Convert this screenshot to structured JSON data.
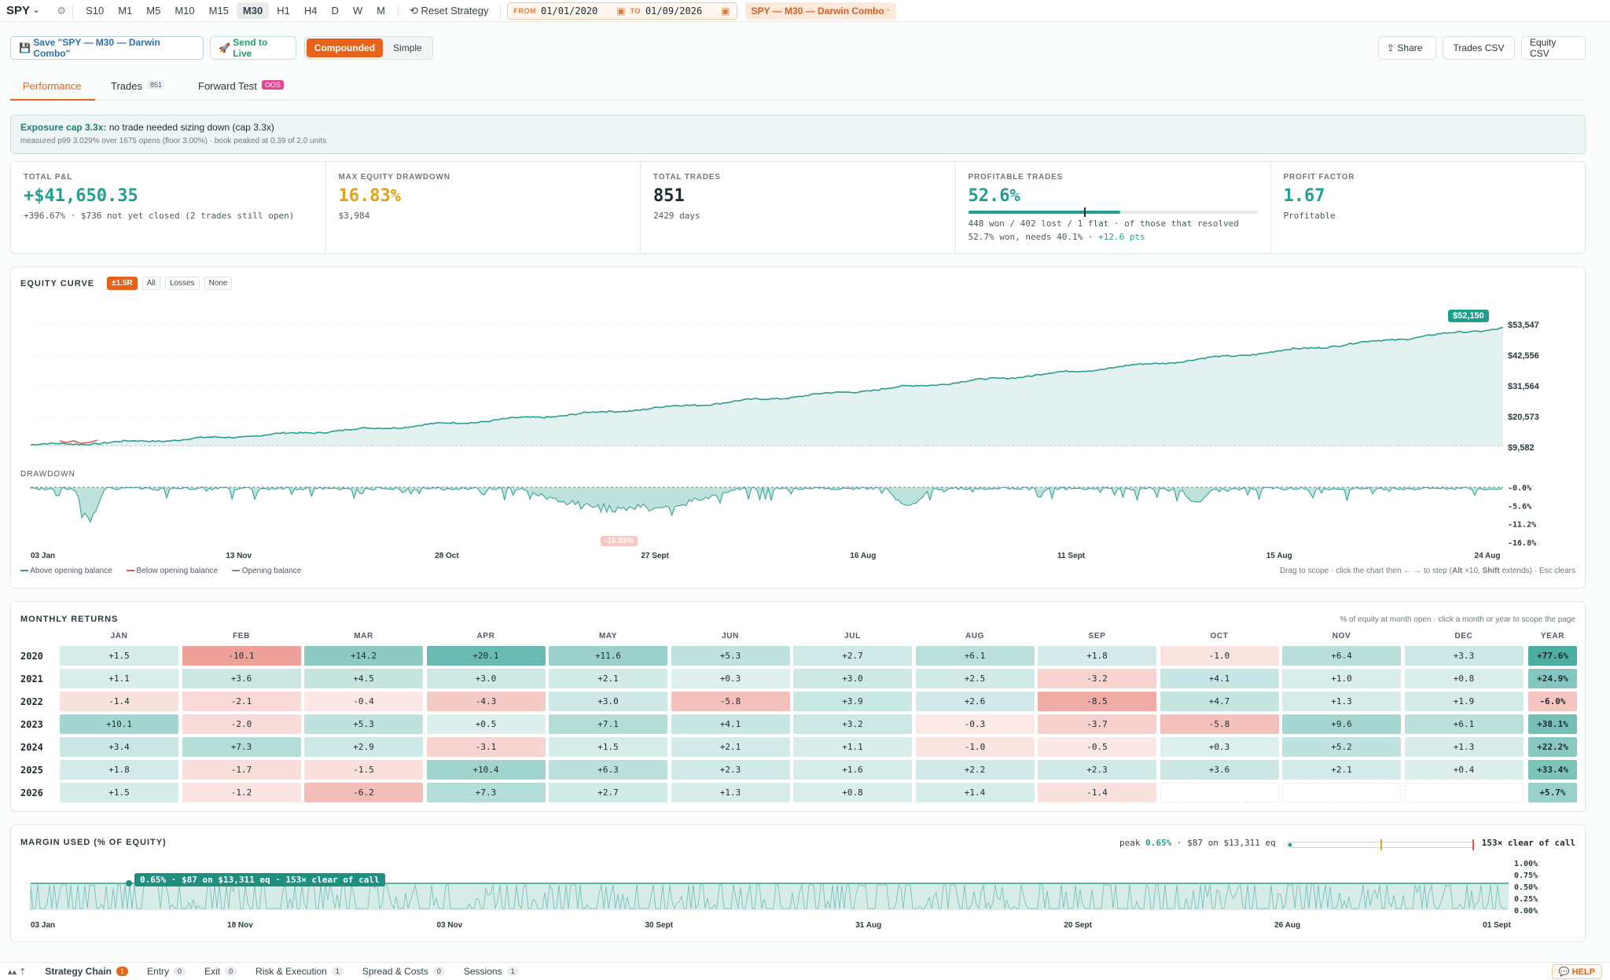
{
  "topbar": {
    "symbol": "SPY",
    "timeframes": [
      "S10",
      "M1",
      "M5",
      "M10",
      "M15",
      "M30",
      "H1",
      "H4",
      "D",
      "W",
      "M"
    ],
    "active_timeframe": "M30",
    "reset_label": "Reset Strategy",
    "from_label": "FROM",
    "from_value": "01/01/2020",
    "to_label": "TO",
    "to_value": "01/09/2026",
    "strategy_tag": "SPY — M30 — Darwin Combo"
  },
  "toolbar": {
    "save_label": "Save \"SPY — M30 — Darwin Combo\"",
    "send_label": "Send to Live",
    "compounded_label": "Compounded",
    "simple_label": "Simple",
    "share_label": "Share",
    "trades_csv_label": "Trades CSV",
    "equity_csv_label": "Equity CSV"
  },
  "tabs": [
    {
      "label": "Performance",
      "badge": ""
    },
    {
      "label": "Trades",
      "badge": "851"
    },
    {
      "label": "Forward Test",
      "badge": "OOS"
    }
  ],
  "exposure": {
    "title": "Exposure cap 3.3x:",
    "text": "no trade needed sizing down (cap 3.3x)",
    "detail": "measured p99 3.029% over 1675 opens (floor 3.00%) · book peaked at 0.39 of 2.0 units"
  },
  "kpis": {
    "total_pnl": {
      "label": "TOTAL P&L",
      "value": "+$41,650.35",
      "sub": "+396.67% · $736 not yet closed (2 trades still open)"
    },
    "max_dd": {
      "label": "MAX EQUITY DRAWDOWN",
      "value": "16.83%",
      "sub": "$3,984"
    },
    "total_trades": {
      "label": "TOTAL TRADES",
      "value": "851",
      "sub": "2429 days"
    },
    "profitable": {
      "label": "PROFITABLE TRADES",
      "value": "52.6%",
      "progress": 0.526,
      "marker": 0.401,
      "sub1": "448 won / 402 lost / 1 flat · of those that resolved",
      "sub2a": "52.7% won, needs 40.1% ·",
      "sub2b": "+12.6 pts"
    },
    "profit_factor": {
      "label": "PROFIT FACTOR",
      "value": "1.67",
      "sub": "Profitable"
    }
  },
  "equity": {
    "title": "EQUITY CURVE",
    "filters": [
      "±1.5R",
      "All",
      "Losses",
      "None"
    ],
    "active_filter": "±1.5R",
    "last_label": "$52,150",
    "y_ticks": [
      "$53,547",
      "$42,556",
      "$31,564",
      "$20,573",
      "$9,582"
    ],
    "drawdown_title": "DRAWDOWN",
    "dd_ticks": [
      "-0.0%",
      "-5.6%",
      "-11.2%",
      "-16.8%"
    ],
    "dd_min_label": "-16.83%",
    "x_ticks": [
      "03 Jan",
      "13 Nov",
      "28 Oct",
      "27 Sept",
      "16 Aug",
      "11 Sept",
      "15 Aug",
      "24 Aug"
    ],
    "legend": [
      "Above opening balance",
      "Below opening balance",
      "Opening balance"
    ],
    "hint_a": "Drag to scope · click the chart then ← → to step (",
    "hint_alt": "Alt",
    "hint_b": " ×10, ",
    "hint_shift": "Shift",
    "hint_c": " extends) · Esc clears",
    "colors": {
      "line": "#2a9d8f",
      "down": "#e05a4c",
      "fill": "#cfe9e5"
    }
  },
  "monthly": {
    "title": "MONTHLY RETURNS",
    "note": "% of equity at month open · click a month or year to scope the page",
    "months": [
      "JAN",
      "FEB",
      "MAR",
      "APR",
      "MAY",
      "JUN",
      "JUL",
      "AUG",
      "SEP",
      "OCT",
      "NOV",
      "DEC",
      "YEAR"
    ],
    "rows": [
      {
        "year": "2020",
        "values": [
          "+1.5",
          "-10.1",
          "+14.2",
          "+20.1",
          "+11.6",
          "+5.3",
          "+2.7",
          "+6.1",
          "+1.8",
          "-1.0",
          "+6.4",
          "+3.3"
        ],
        "total": "+77.6%"
      },
      {
        "year": "2021",
        "values": [
          "+1.1",
          "+3.6",
          "+4.5",
          "+3.0",
          "+2.1",
          "+0.3",
          "+3.0",
          "+2.5",
          "-3.2",
          "+4.1",
          "+1.0",
          "+0.8"
        ],
        "total": "+24.9%"
      },
      {
        "year": "2022",
        "values": [
          "-1.4",
          "-2.1",
          "-0.4",
          "-4.3",
          "+3.0",
          "-5.8",
          "+3.9",
          "+2.6",
          "-8.5",
          "+4.7",
          "+1.3",
          "+1.9"
        ],
        "total": "-6.0%"
      },
      {
        "year": "2023",
        "values": [
          "+10.1",
          "-2.0",
          "+5.3",
          "+0.5",
          "+7.1",
          "+4.1",
          "+3.2",
          "-0.3",
          "-3.7",
          "-5.8",
          "+9.6",
          "+6.1"
        ],
        "total": "+38.1%"
      },
      {
        "year": "2024",
        "values": [
          "+3.4",
          "+7.3",
          "+2.9",
          "-3.1",
          "+1.5",
          "+2.1",
          "+1.1",
          "-1.0",
          "-0.5",
          "+0.3",
          "+5.2",
          "+1.3"
        ],
        "total": "+22.2%"
      },
      {
        "year": "2025",
        "values": [
          "+1.8",
          "-1.7",
          "-1.5",
          "+10.4",
          "+6.3",
          "+2.3",
          "+1.6",
          "+2.2",
          "+2.3",
          "+3.6",
          "+2.1",
          "+0.4"
        ],
        "total": "+33.4%"
      },
      {
        "year": "2026",
        "values": [
          "+1.5",
          "-1.2",
          "-6.2",
          "+7.3",
          "+2.7",
          "+1.3",
          "+0.8",
          "+1.4",
          "-1.4",
          "",
          "",
          ""
        ],
        "total": "+5.7%"
      }
    ]
  },
  "margin": {
    "title": "MARGIN USED (% OF EQUITY)",
    "peak_label": "peak",
    "peak_value": "0.65%",
    "peak_detail": "· $87 on $13,311 eq",
    "clear_label": "153× clear of call",
    "tooltip": "0.65% · $87 on $13,311 eq · 153× clear of call",
    "y_ticks": [
      "1.00%",
      "0.75%",
      "0.50%",
      "0.25%",
      "0.00%"
    ],
    "x_ticks": [
      "03 Jan",
      "18 Nov",
      "03 Nov",
      "30 Sept",
      "31 Aug",
      "20 Sept",
      "26 Aug",
      "01 Sept"
    ]
  },
  "bottom": {
    "tabs": [
      {
        "label": "Strategy Chain",
        "count": "1"
      },
      {
        "label": "Entry",
        "count": "0"
      },
      {
        "label": "Exit",
        "count": "0"
      },
      {
        "label": "Risk & Execution",
        "count": "1"
      },
      {
        "label": "Spread & Costs",
        "count": "0"
      },
      {
        "label": "Sessions",
        "count": "1"
      }
    ],
    "help_label": "HELP"
  }
}
